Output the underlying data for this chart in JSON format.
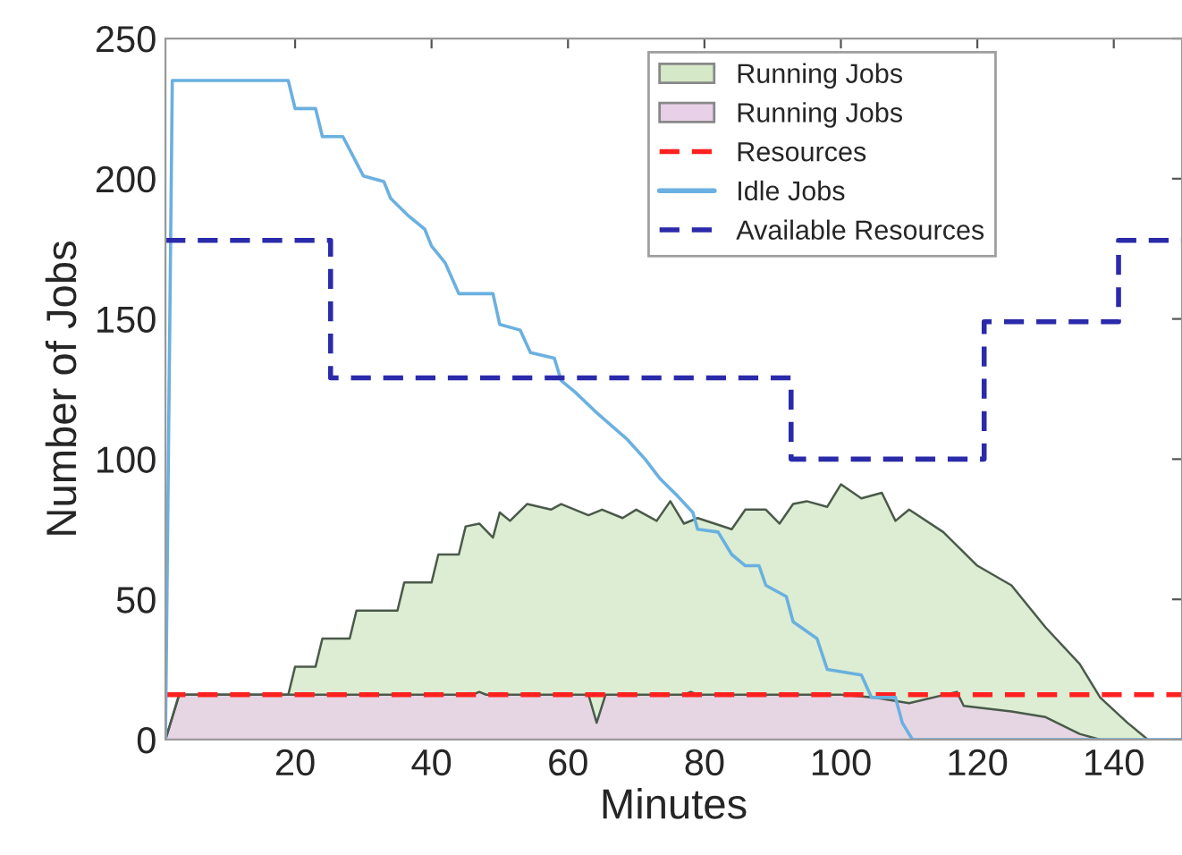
{
  "chart_data": {
    "type": "area",
    "xlabel": "Minutes",
    "ylabel": "Number of Jobs",
    "xlim": [
      1,
      150
    ],
    "ylim": [
      0,
      250
    ],
    "xticks": [
      20,
      40,
      60,
      80,
      100,
      120,
      140
    ],
    "yticks": [
      0,
      50,
      100,
      150,
      200,
      250
    ],
    "grid": false,
    "legend": "top right",
    "series": [
      {
        "name": "Running Jobs",
        "color": "#d5e8c8",
        "x": [
          1,
          3,
          19,
          20,
          23,
          24,
          28,
          29,
          35,
          36,
          40,
          41,
          44,
          45,
          47,
          49,
          50,
          51.5,
          54,
          57.5,
          59,
          63,
          65,
          68,
          70,
          73,
          75,
          77,
          79,
          84,
          86,
          89,
          91,
          93,
          95,
          98,
          100,
          103,
          106,
          108,
          110,
          115,
          120,
          125,
          130,
          135,
          138,
          142,
          145
        ],
        "values": [
          0,
          16,
          16,
          26,
          26,
          36,
          36,
          46,
          46,
          56,
          56,
          66,
          66,
          76,
          77,
          72,
          81,
          78,
          84,
          82,
          84,
          80,
          82,
          79,
          82,
          78,
          85,
          77,
          79,
          75,
          82,
          82,
          77,
          84,
          85,
          83,
          91,
          86,
          88,
          78,
          82,
          74,
          62,
          55,
          40,
          27,
          15,
          6,
          0
        ]
      },
      {
        "name": "Running Jobs",
        "color": "#e8d0e8",
        "x": [
          1,
          3,
          46,
          47,
          48,
          63,
          64.2,
          65.5,
          77,
          78,
          79,
          100,
          105,
          110,
          117,
          118,
          125,
          130,
          135,
          138
        ],
        "values": [
          0,
          16,
          16,
          17,
          16,
          16,
          6,
          16,
          16,
          17,
          16,
          16,
          15,
          13,
          17,
          12,
          10,
          8,
          2,
          0
        ]
      },
      {
        "name": "Resources",
        "type": "line",
        "line_style": "dashed",
        "color": "#ff2020",
        "x": [
          1,
          150
        ],
        "values": [
          16,
          16
        ]
      },
      {
        "name": "Idle Jobs",
        "type": "line",
        "line_style": "solid",
        "color": "#6ab0e0",
        "x": [
          1,
          2,
          19,
          20,
          23,
          24,
          27,
          30,
          33,
          34,
          36.5,
          39,
          40,
          42,
          44,
          49,
          50,
          53,
          54.5,
          58,
          59,
          61,
          64,
          68.7,
          71.3,
          73.5,
          76,
          78.3,
          79,
          82,
          84,
          86,
          88,
          89,
          92,
          93,
          96.5,
          98,
          103,
          104.5,
          108,
          109,
          110.5,
          150
        ],
        "values": [
          0,
          235,
          235,
          225,
          225,
          215,
          215,
          201,
          199,
          193,
          187,
          182,
          176,
          170,
          159,
          159,
          148,
          146,
          138,
          136,
          128,
          124,
          117,
          107,
          100,
          93,
          87,
          81,
          75,
          74,
          66,
          62,
          62,
          55,
          51,
          42,
          36,
          25,
          23,
          15,
          15,
          6,
          0,
          0
        ]
      },
      {
        "name": "Available Resources",
        "type": "step",
        "line_style": "dashed",
        "color": "#2a2aaa",
        "x": [
          1,
          25.2,
          92.7,
          121,
          140.7,
          150
        ],
        "values": [
          178,
          129,
          100,
          149,
          178,
          178
        ]
      }
    ]
  }
}
